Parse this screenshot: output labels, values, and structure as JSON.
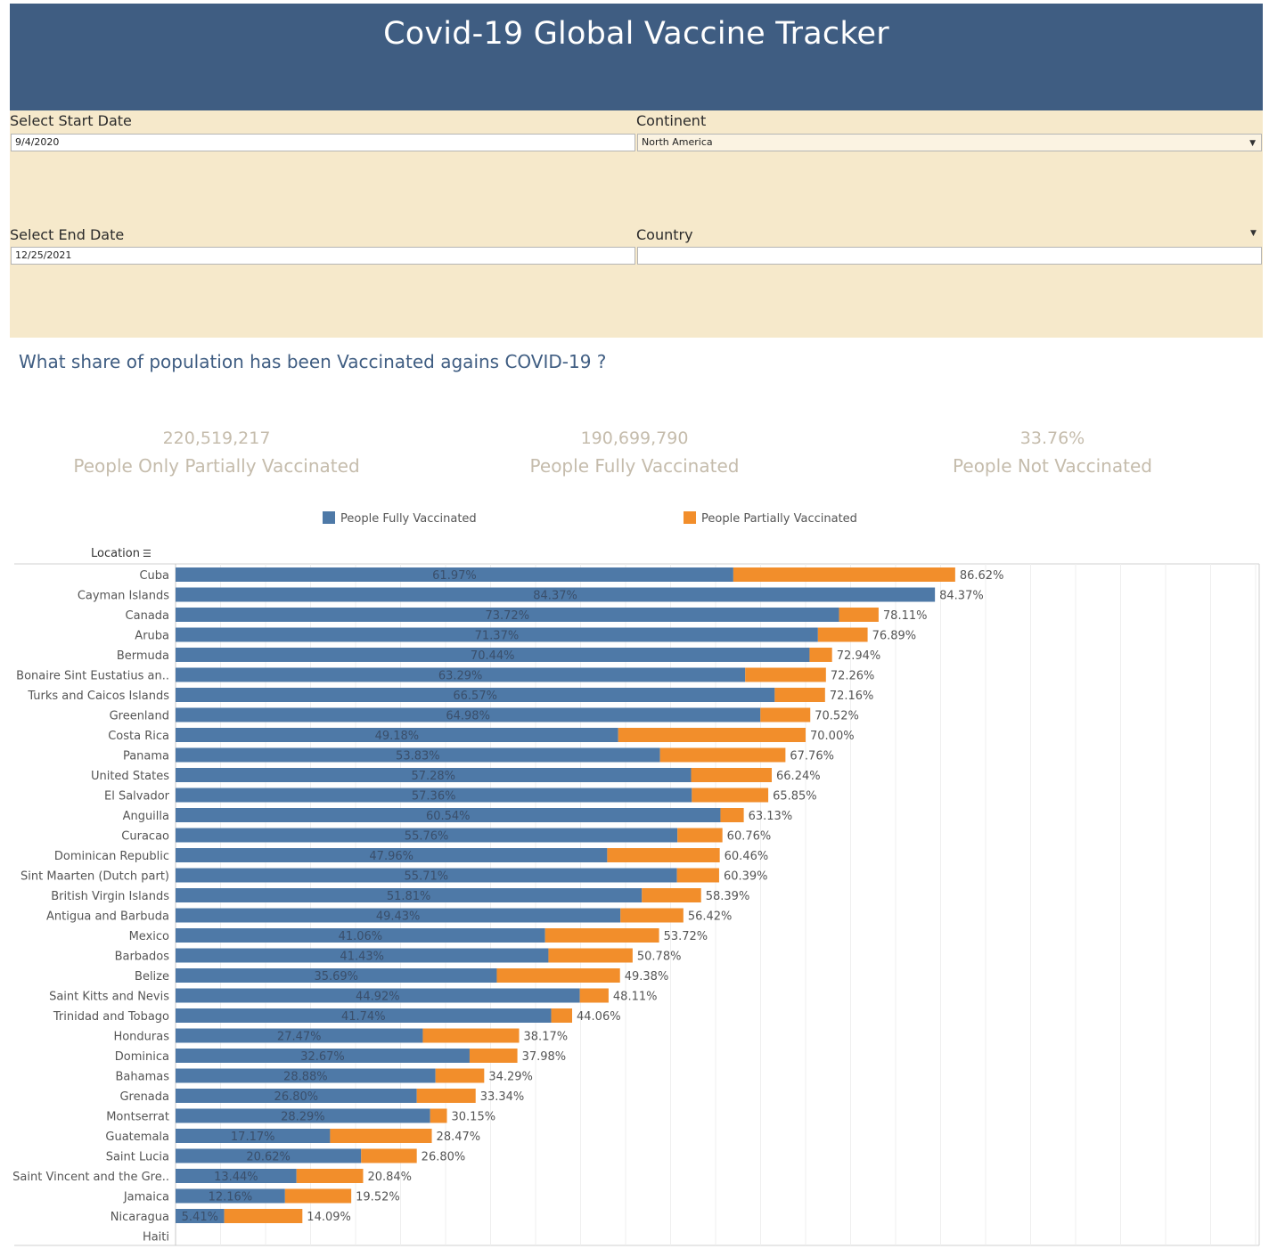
{
  "header": {
    "title": "Covid-19 Global Vaccine Tracker"
  },
  "filters": {
    "start_label": "Select Start Date",
    "start_value": "9/4/2020",
    "end_label": "Select End Date",
    "end_value": "12/25/2021",
    "continent_label": "Continent",
    "continent_value": "North America",
    "country_label": "Country",
    "country_value": ""
  },
  "question": "What share of population has been Vaccinated agains COVID-19 ?",
  "kpis": [
    {
      "value": "220,519,217",
      "label": "People Only Partially Vaccinated"
    },
    {
      "value": "190,699,790",
      "label": "People Fully Vaccinated"
    },
    {
      "value": "33.76%",
      "label": "People Not Vaccinated"
    }
  ],
  "legend": {
    "fully": "People Fully Vaccinated",
    "partially": "People Partially Vaccinated"
  },
  "colors": {
    "fully": "#4e79a7",
    "partially": "#f28e2b",
    "header": "#3f5d82",
    "filters_bg": "#f6e9cb"
  },
  "chart_data": {
    "type": "bar",
    "orientation": "horizontal",
    "stacked": true,
    "row_header": "Location",
    "categories": [
      "Cuba",
      "Cayman Islands",
      "Canada",
      "Aruba",
      "Bermuda",
      "Bonaire Sint Eustatius an..",
      "Turks and Caicos Islands",
      "Greenland",
      "Costa Rica",
      "Panama",
      "United States",
      "El Salvador",
      "Anguilla",
      "Curacao",
      "Dominican Republic",
      "Sint Maarten (Dutch part)",
      "British Virgin Islands",
      "Antigua and Barbuda",
      "Mexico",
      "Barbados",
      "Belize",
      "Saint Kitts and Nevis",
      "Trinidad and Tobago",
      "Honduras",
      "Dominica",
      "Bahamas",
      "Grenada",
      "Montserrat",
      "Guatemala",
      "Saint Lucia",
      "Saint Vincent and the Gre..",
      "Jamaica",
      "Nicaragua",
      "Haiti"
    ],
    "series": [
      {
        "name": "People Fully Vaccinated",
        "values": [
          61.97,
          84.37,
          73.72,
          71.37,
          70.44,
          63.29,
          66.57,
          64.98,
          49.18,
          53.83,
          57.28,
          57.36,
          60.54,
          55.76,
          47.96,
          55.71,
          51.81,
          49.43,
          41.06,
          41.43,
          35.69,
          44.92,
          41.74,
          27.47,
          32.67,
          28.88,
          26.8,
          28.29,
          17.17,
          20.62,
          13.44,
          12.16,
          5.41,
          null
        ]
      },
      {
        "name": "People Partially Vaccinated",
        "totals": [
          86.62,
          84.37,
          78.11,
          76.89,
          72.94,
          72.26,
          72.16,
          70.52,
          70.0,
          67.76,
          66.24,
          65.85,
          63.13,
          60.76,
          60.46,
          60.39,
          58.39,
          56.42,
          53.72,
          50.78,
          49.38,
          48.11,
          44.06,
          38.17,
          37.98,
          34.29,
          33.34,
          30.15,
          28.47,
          26.8,
          20.84,
          19.52,
          14.09,
          null
        ]
      }
    ],
    "value_format": "percent_2dp",
    "grid": true,
    "legend_position": "top"
  }
}
